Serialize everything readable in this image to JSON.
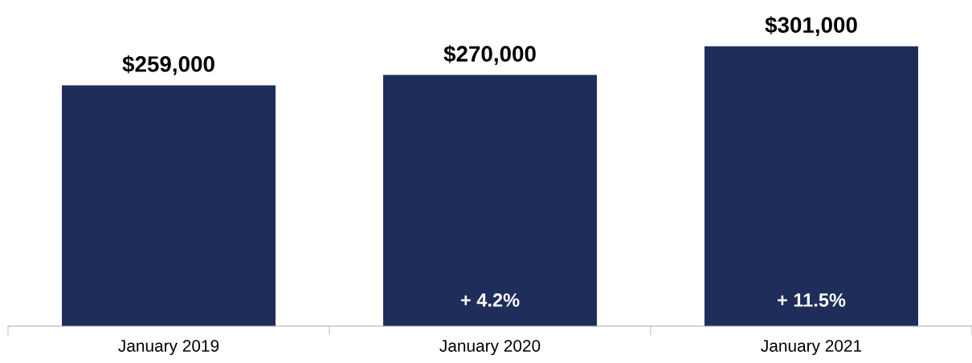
{
  "chart_data": {
    "type": "bar",
    "categories": [
      "January 2019",
      "January 2020",
      "January 2021"
    ],
    "values": [
      259000,
      270000,
      301000
    ],
    "value_labels": [
      "$259,000",
      "$270,000",
      "$301,000"
    ],
    "color": "#1f2d5a",
    "annotations": [
      "+ 4.2%",
      "+ 11.5%"
    ],
    "grid": false,
    "legend": false,
    "tick_labels": "x"
  }
}
